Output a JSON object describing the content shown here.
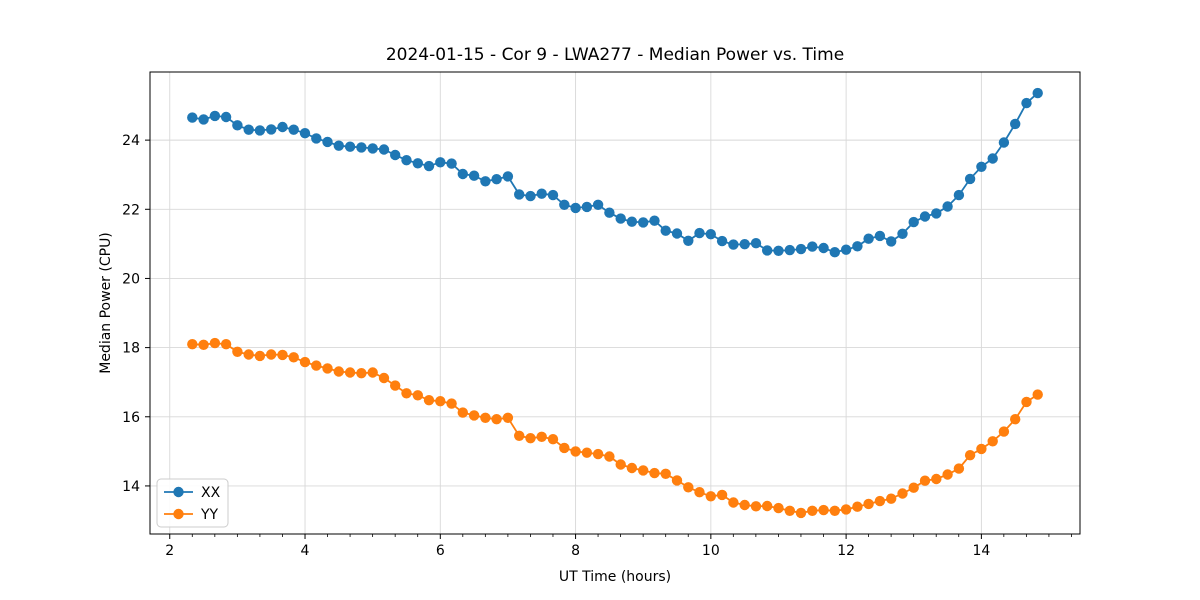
{
  "figure": {
    "title": "2024-01-15 - Cor 9 - LWA277 - Median Power vs. Time",
    "xlabel": "UT Time (hours)",
    "ylabel": "Median Power (CPU)"
  },
  "colors": {
    "series_xx": "#1f77b4",
    "series_yy": "#ff7f0e",
    "grid": "#d8d8d8",
    "spine": "#000000",
    "text": "#000000",
    "legend_border": "#cccccc",
    "background": "#ffffff"
  },
  "chart_data": {
    "type": "line",
    "title": "2024-01-15 - Cor 9 - LWA277 - Median Power vs. Time",
    "xlabel": "UT Time (hours)",
    "ylabel": "Median Power (CPU)",
    "grid": true,
    "legend_position": "lower left",
    "marker": "o",
    "xlim": [
      1.708,
      15.458
    ],
    "ylim": [
      12.61,
      25.97
    ],
    "x_ticks": [
      2,
      4,
      6,
      8,
      10,
      12,
      14
    ],
    "y_ticks": [
      14,
      16,
      18,
      20,
      22,
      24
    ],
    "x_minor_step": 0.3333,
    "x": [
      2.333,
      2.5,
      2.667,
      2.833,
      3.0,
      3.167,
      3.333,
      3.5,
      3.667,
      3.833,
      4.0,
      4.167,
      4.333,
      4.5,
      4.667,
      4.833,
      5.0,
      5.167,
      5.333,
      5.5,
      5.667,
      5.833,
      6.0,
      6.167,
      6.333,
      6.5,
      6.667,
      6.833,
      7.0,
      7.167,
      7.333,
      7.5,
      7.667,
      7.833,
      8.0,
      8.167,
      8.333,
      8.5,
      8.667,
      8.833,
      9.0,
      9.167,
      9.333,
      9.5,
      9.667,
      9.833,
      10.0,
      10.167,
      10.333,
      10.5,
      10.667,
      10.833,
      11.0,
      11.167,
      11.333,
      11.5,
      11.667,
      11.833,
      12.0,
      12.167,
      12.333,
      12.5,
      12.667,
      12.833,
      13.0,
      13.167,
      13.333,
      13.5,
      13.667,
      13.833,
      14.0,
      14.167,
      14.333,
      14.5,
      14.667,
      14.833
    ],
    "series": [
      {
        "name": "XX",
        "color": "#1f77b4",
        "values": [
          24.65,
          24.6,
          24.7,
          24.67,
          24.43,
          24.3,
          24.28,
          24.31,
          24.38,
          24.3,
          24.2,
          24.05,
          23.95,
          23.84,
          23.81,
          23.79,
          23.76,
          23.73,
          23.57,
          23.42,
          23.33,
          23.25,
          23.36,
          23.32,
          23.02,
          22.97,
          22.81,
          22.87,
          22.95,
          22.43,
          22.38,
          22.45,
          22.41,
          22.13,
          22.04,
          22.07,
          22.13,
          21.9,
          21.73,
          21.64,
          21.62,
          21.67,
          21.38,
          21.3,
          21.09,
          21.31,
          21.28,
          21.08,
          20.98,
          20.99,
          21.02,
          20.81,
          20.8,
          20.82,
          20.85,
          20.92,
          20.88,
          20.76,
          20.83,
          20.93,
          21.15,
          21.23,
          21.07,
          21.29,
          21.63,
          21.79,
          21.88,
          22.08,
          22.41,
          22.88,
          23.23,
          23.47,
          23.93,
          24.47,
          25.07,
          25.36
        ]
      },
      {
        "name": "YY",
        "color": "#ff7f0e",
        "values": [
          18.1,
          18.08,
          18.13,
          18.1,
          17.88,
          17.8,
          17.76,
          17.8,
          17.79,
          17.72,
          17.58,
          17.48,
          17.4,
          17.31,
          17.28,
          17.26,
          17.28,
          17.12,
          16.9,
          16.68,
          16.62,
          16.48,
          16.45,
          16.38,
          16.12,
          16.04,
          15.97,
          15.93,
          15.97,
          15.45,
          15.38,
          15.42,
          15.35,
          15.1,
          15.0,
          14.96,
          14.92,
          14.85,
          14.62,
          14.52,
          14.45,
          14.37,
          14.35,
          14.16,
          13.96,
          13.82,
          13.7,
          13.74,
          13.52,
          13.45,
          13.41,
          13.42,
          13.36,
          13.28,
          13.22,
          13.28,
          13.3,
          13.28,
          13.32,
          13.4,
          13.48,
          13.56,
          13.63,
          13.78,
          13.95,
          14.15,
          14.2,
          14.33,
          14.5,
          14.89,
          15.07,
          15.29,
          15.57,
          15.93,
          16.43,
          16.64
        ]
      }
    ]
  }
}
